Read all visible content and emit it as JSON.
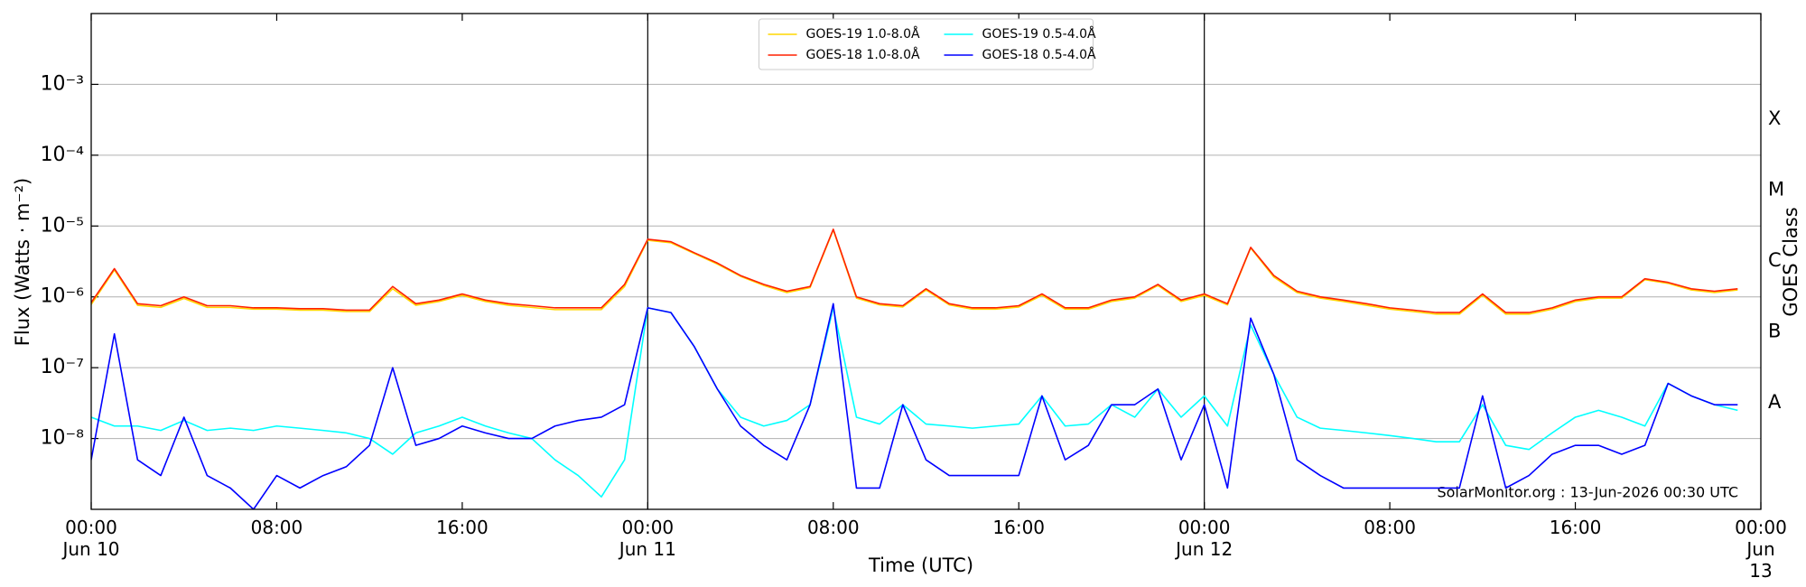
{
  "chart_data": {
    "type": "line",
    "xlabel": "Time (UTC)",
    "ylabel": "Flux (Watts · m⁻²)",
    "y2label": "GOES Class",
    "annotation": "SolarMonitor.org : 13-Jun-2026 00:30 UTC",
    "log_y": true,
    "grid": true,
    "legend": "upper center",
    "xlim": [
      "Jun 10 00:00",
      "Jun 13 00:00"
    ],
    "xticks": [
      {
        "value": "Jun 10 00:00",
        "label": "00:00\nJun 10"
      },
      {
        "value": "Jun 10 08:00",
        "label": "08:00"
      },
      {
        "value": "Jun 10 16:00",
        "label": "16:00"
      },
      {
        "value": "Jun 11 00:00",
        "label": "00:00\nJun 11"
      },
      {
        "value": "Jun 11 08:00",
        "label": "08:00"
      },
      {
        "value": "Jun 11 16:00",
        "label": "16:00"
      },
      {
        "value": "Jun 12 00:00",
        "label": "00:00\nJun 12"
      },
      {
        "value": "Jun 12 08:00",
        "label": "08:00"
      },
      {
        "value": "Jun 12 16:00",
        "label": "16:00"
      },
      {
        "value": "Jun 13 00:00",
        "label": "00:00\nJun 13"
      }
    ],
    "vlines": [
      "Jun 11 00:00",
      "Jun 12 00:00"
    ],
    "ylim": [
      1e-09,
      0.01
    ],
    "yticks": [
      {
        "value": 1e-08,
        "label": "10⁻⁸"
      },
      {
        "value": 1e-07,
        "label": "10⁻⁷"
      },
      {
        "value": 1e-06,
        "label": "10⁻⁶"
      },
      {
        "value": 1e-05,
        "label": "10⁻⁵"
      },
      {
        "value": 0.0001,
        "label": "10⁻⁴"
      },
      {
        "value": 0.001,
        "label": "10⁻³"
      }
    ],
    "y2lim": [
      1e-09,
      0.01
    ],
    "y2ticks": [
      {
        "value": 3.2e-08,
        "label": "A"
      },
      {
        "value": 3.2e-07,
        "label": "B"
      },
      {
        "value": 3.2e-06,
        "label": "C"
      },
      {
        "value": 3.2e-05,
        "label": "M"
      },
      {
        "value": 0.00032,
        "label": "X"
      }
    ],
    "x": [
      "Jun 10 00:00",
      "Jun 10 01:00",
      "Jun 10 02:00",
      "Jun 10 03:00",
      "Jun 10 04:00",
      "Jun 10 05:00",
      "Jun 10 06:00",
      "Jun 10 07:00",
      "Jun 10 08:00",
      "Jun 10 09:00",
      "Jun 10 10:00",
      "Jun 10 11:00",
      "Jun 10 12:00",
      "Jun 10 13:00",
      "Jun 10 14:00",
      "Jun 10 15:00",
      "Jun 10 16:00",
      "Jun 10 17:00",
      "Jun 10 18:00",
      "Jun 10 19:00",
      "Jun 10 20:00",
      "Jun 10 21:00",
      "Jun 10 22:00",
      "Jun 10 23:00",
      "Jun 11 00:00",
      "Jun 11 01:00",
      "Jun 11 02:00",
      "Jun 11 03:00",
      "Jun 11 04:00",
      "Jun 11 05:00",
      "Jun 11 06:00",
      "Jun 11 07:00",
      "Jun 11 08:00",
      "Jun 11 09:00",
      "Jun 11 10:00",
      "Jun 11 11:00",
      "Jun 11 12:00",
      "Jun 11 13:00",
      "Jun 11 14:00",
      "Jun 11 15:00",
      "Jun 11 16:00",
      "Jun 11 17:00",
      "Jun 11 18:00",
      "Jun 11 19:00",
      "Jun 11 20:00",
      "Jun 11 21:00",
      "Jun 11 22:00",
      "Jun 11 23:00",
      "Jun 12 00:00",
      "Jun 12 01:00",
      "Jun 12 02:00",
      "Jun 12 03:00",
      "Jun 12 04:00",
      "Jun 12 05:00",
      "Jun 12 06:00",
      "Jun 12 07:00",
      "Jun 12 08:00",
      "Jun 12 09:00",
      "Jun 12 10:00",
      "Jun 12 11:00",
      "Jun 12 12:00",
      "Jun 12 13:00",
      "Jun 12 14:00",
      "Jun 12 15:00",
      "Jun 12 16:00",
      "Jun 12 17:00",
      "Jun 12 18:00",
      "Jun 12 19:00",
      "Jun 12 20:00",
      "Jun 12 21:00",
      "Jun 12 22:00",
      "Jun 12 23:00",
      "Jun 13 00:00"
    ],
    "series": [
      {
        "name": "GOES-19 1.0-8.0Å",
        "color": "#ffd700",
        "values": [
          7.8e-07,
          2.4e-06,
          7.6e-07,
          7.1e-07,
          9.5e-07,
          7.1e-07,
          7.1e-07,
          6.7e-07,
          6.7e-07,
          6.5e-07,
          6.5e-07,
          6.2e-07,
          6.2e-07,
          1.3e-06,
          7.6e-07,
          8.6e-07,
          1.05e-06,
          8.6e-07,
          7.6e-07,
          7.1e-07,
          6.6e-07,
          6.6e-07,
          6.6e-07,
          1.4e-06,
          6.3e-06,
          5.8e-06,
          4.1e-06,
          2.9e-06,
          1.95e-06,
          1.45e-06,
          1.15e-06,
          1.35e-06,
          8.8e-06,
          9.6e-07,
          7.7e-07,
          7.2e-07,
          1.25e-06,
          7.7e-07,
          6.7e-07,
          6.7e-07,
          7.2e-07,
          1.05e-06,
          6.7e-07,
          6.7e-07,
          8.6e-07,
          9.6e-07,
          1.45e-06,
          8.6e-07,
          1.05e-06,
          7.7e-07,
          4.9e-06,
          1.9e-06,
          1.15e-06,
          9.6e-07,
          8.6e-07,
          7.6e-07,
          6.7e-07,
          6.2e-07,
          5.7e-07,
          5.7e-07,
          1.05e-06,
          5.7e-07,
          5.7e-07,
          6.7e-07,
          8.6e-07,
          9.6e-07,
          9.6e-07,
          1.75e-06,
          1.55e-06,
          1.25e-06,
          1.15e-06,
          1.25e-06,
          null
        ]
      },
      {
        "name": "GOES-18 1.0-8.0Å",
        "color": "#ff2000",
        "values": [
          8.3e-07,
          2.5e-06,
          8e-07,
          7.5e-07,
          1e-06,
          7.5e-07,
          7.5e-07,
          7e-07,
          7e-07,
          6.8e-07,
          6.8e-07,
          6.5e-07,
          6.5e-07,
          1.4e-06,
          8e-07,
          9e-07,
          1.1e-06,
          9e-07,
          8e-07,
          7.5e-07,
          7e-07,
          7e-07,
          7e-07,
          1.5e-06,
          6.5e-06,
          6e-06,
          4.2e-06,
          3e-06,
          2e-06,
          1.5e-06,
          1.2e-06,
          1.4e-06,
          9e-06,
          1e-06,
          8e-07,
          7.5e-07,
          1.3e-06,
          8e-07,
          7e-07,
          7e-07,
          7.5e-07,
          1.1e-06,
          7e-07,
          7e-07,
          9e-07,
          1e-06,
          1.5e-06,
          9e-07,
          1.1e-06,
          8e-07,
          5e-06,
          2e-06,
          1.2e-06,
          1e-06,
          9e-07,
          8e-07,
          7e-07,
          6.5e-07,
          6e-07,
          6e-07,
          1.1e-06,
          6e-07,
          6e-07,
          7e-07,
          9e-07,
          1e-06,
          1e-06,
          1.8e-06,
          1.6e-06,
          1.3e-06,
          1.2e-06,
          1.3e-06,
          null
        ]
      },
      {
        "name": "GOES-19 0.5-4.0Å",
        "color": "#00ffff",
        "values": [
          2e-08,
          1.5e-08,
          1.5e-08,
          1.3e-08,
          1.8e-08,
          1.3e-08,
          1.4e-08,
          1.3e-08,
          1.5e-08,
          1.4e-08,
          1.3e-08,
          1.2e-08,
          1e-08,
          6e-09,
          1.2e-08,
          1.5e-08,
          2e-08,
          1.5e-08,
          1.2e-08,
          1e-08,
          5e-09,
          3e-09,
          1.5e-09,
          5e-09,
          7e-07,
          6e-07,
          2e-07,
          5e-08,
          2e-08,
          1.5e-08,
          1.8e-08,
          3e-08,
          7e-07,
          2e-08,
          1.6e-08,
          3e-08,
          1.6e-08,
          1.5e-08,
          1.4e-08,
          1.5e-08,
          1.6e-08,
          4e-08,
          1.5e-08,
          1.6e-08,
          3e-08,
          2e-08,
          5e-08,
          2e-08,
          4e-08,
          1.5e-08,
          4e-07,
          8e-08,
          2e-08,
          1.4e-08,
          1.3e-08,
          1.2e-08,
          1.1e-08,
          1e-08,
          9e-09,
          9e-09,
          3e-08,
          8e-09,
          7e-09,
          1.2e-08,
          2e-08,
          2.5e-08,
          2e-08,
          1.5e-08,
          6e-08,
          4e-08,
          3e-08,
          2.5e-08,
          null
        ]
      },
      {
        "name": "GOES-18 0.5-4.0Å",
        "color": "#0000ff",
        "values": [
          5e-09,
          3e-07,
          5e-09,
          3e-09,
          2e-08,
          3e-09,
          2e-09,
          1e-09,
          3e-09,
          2e-09,
          3e-09,
          4e-09,
          8e-09,
          1e-07,
          8e-09,
          1e-08,
          1.5e-08,
          1.2e-08,
          1e-08,
          1e-08,
          1.5e-08,
          1.8e-08,
          2e-08,
          3e-08,
          7e-07,
          6e-07,
          2e-07,
          5e-08,
          1.5e-08,
          8e-09,
          5e-09,
          3e-08,
          8e-07,
          2e-09,
          2e-09,
          3e-08,
          5e-09,
          3e-09,
          3e-09,
          3e-09,
          3e-09,
          4e-08,
          5e-09,
          8e-09,
          3e-08,
          3e-08,
          5e-08,
          5e-09,
          3e-08,
          2e-09,
          5e-07,
          8e-08,
          5e-09,
          3e-09,
          2e-09,
          2e-09,
          2e-09,
          2e-09,
          2e-09,
          2e-09,
          4e-08,
          2e-09,
          3e-09,
          6e-09,
          8e-09,
          8e-09,
          6e-09,
          8e-09,
          6e-08,
          4e-08,
          3e-08,
          3e-08,
          null
        ]
      }
    ]
  }
}
